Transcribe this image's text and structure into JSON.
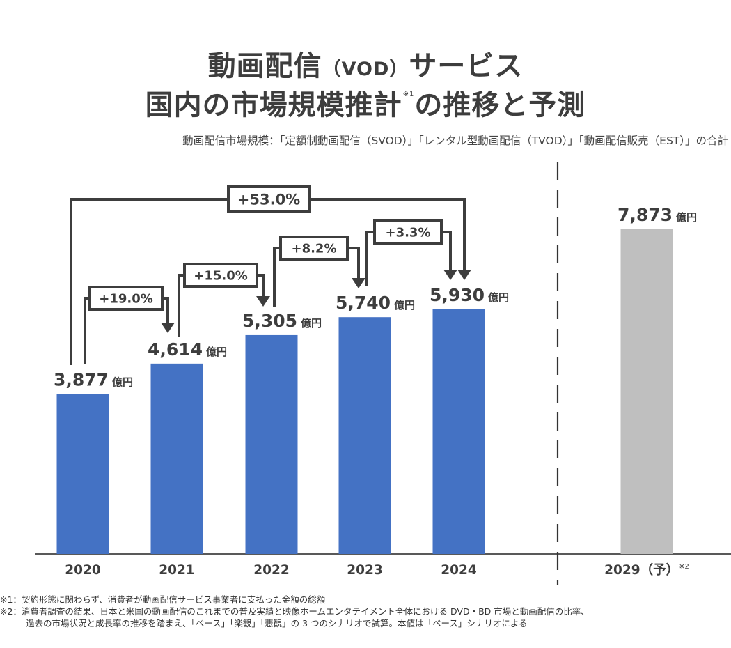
{
  "title": {
    "line1_main": "動画配信",
    "line1_paren": "（VOD）",
    "line1_tail": "サービス",
    "line2_main": "国内の市場規模推計",
    "line2_sup": "※1",
    "line2_tail": "の推移と予測"
  },
  "subtitle": "動画配信市場規模：「定額制動画配信（SVOD）」「レンタル型動画配信（TVOD）」「動画配信販売（EST）」の合計",
  "chart_data": {
    "type": "bar",
    "categories": [
      "2020",
      "2021",
      "2022",
      "2023",
      "2024",
      "2029（予）"
    ],
    "category_suffix_note": [
      "",
      "",
      "",
      "",
      "",
      "※2"
    ],
    "values": [
      3877,
      4614,
      5305,
      5740,
      5930,
      7873
    ],
    "value_labels": [
      "3,877",
      "4,614",
      "5,305",
      "5,740",
      "5,930",
      "7,873"
    ],
    "unit": "億円",
    "forecast_index": 5,
    "colors": {
      "actual": "#4472c4",
      "forecast": "#bfbfbf",
      "text": "#3d3d3d"
    },
    "growth_annotations": [
      {
        "from": 0,
        "to": 1,
        "label": "+19.0%"
      },
      {
        "from": 1,
        "to": 2,
        "label": "+15.0%"
      },
      {
        "from": 2,
        "to": 3,
        "label": "+8.2%"
      },
      {
        "from": 3,
        "to": 4,
        "label": "+3.3%"
      },
      {
        "from": 0,
        "to": 4,
        "label": "+53.0%"
      }
    ],
    "ylim": [
      0,
      8000
    ],
    "grid": false
  },
  "footnotes": [
    "※1：契約形態に関わらず、消費者が動画配信サービス事業者に支払った金額の総額",
    "※2：消費者調査の結果、日本と米国の動画配信のこれまでの普及実績と映像ホームエンタテイメント全体における DVD・BD 市場と動画配信の比率、",
    "過去の市場状況と成長率の推移を踏まえ、「ベース」「楽観」「悲観」の 3 つのシナリオで試算。本値は「ベース」シナリオによる"
  ]
}
